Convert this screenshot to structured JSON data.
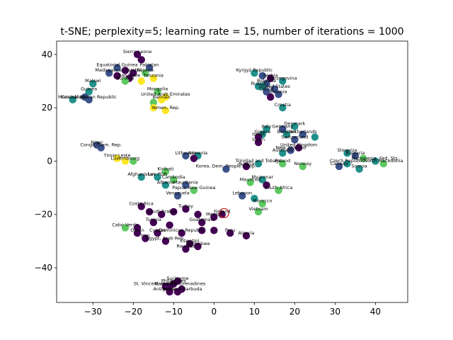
{
  "chart_data": {
    "type": "scatter",
    "title": "t-SNE; perplexity=5; learning rate = 15, number of iterations = 1000",
    "xlabel": "",
    "ylabel": "",
    "xlim": [
      -39,
      48
    ],
    "ylim": [
      -53,
      45
    ],
    "xticks": [
      -30,
      -20,
      -10,
      0,
      10,
      20,
      30,
      40
    ],
    "yticks": [
      -40,
      -20,
      0,
      20,
      40
    ],
    "xtick_labels": [
      "−30",
      "−20",
      "−10",
      "0",
      "10",
      "20",
      "30",
      "40"
    ],
    "ytick_labels": [
      "−40",
      "−20",
      "0",
      "20",
      "40"
    ],
    "grid": false,
    "legend": "none",
    "colormap": [
      "#440154",
      "#3b528b",
      "#21918c",
      "#5ec962",
      "#fde725"
    ],
    "highlight": {
      "x": 2.5,
      "y": -19.5,
      "color": "#d62728"
    },
    "points": [
      {
        "x": -19,
        "y": 40,
        "c": 0,
        "label": "Sierra Leone"
      },
      {
        "x": -18,
        "y": 38,
        "c": 0,
        "label": ""
      },
      {
        "x": -16,
        "y": 35,
        "c": 1,
        "label": "Pakistan"
      },
      {
        "x": -24,
        "y": 35,
        "c": 1,
        "label": "Equatorial Guinea"
      },
      {
        "x": -22,
        "y": 34,
        "c": 0,
        "label": ""
      },
      {
        "x": -20,
        "y": 33,
        "c": 0,
        "label": "Zambia"
      },
      {
        "x": -26,
        "y": 33,
        "c": 1,
        "label": "Madagascar"
      },
      {
        "x": -24,
        "y": 32,
        "c": 0,
        "label": ""
      },
      {
        "x": -17,
        "y": 33,
        "c": 3,
        "label": "Nigeria"
      },
      {
        "x": -21,
        "y": 31,
        "c": 0,
        "label": "Sao Tome"
      },
      {
        "x": -15,
        "y": 31,
        "c": 4,
        "label": "Tanzania"
      },
      {
        "x": -22,
        "y": 30,
        "c": 3,
        "label": "Burundi"
      },
      {
        "x": -18,
        "y": 30,
        "c": 4,
        "label": ""
      },
      {
        "x": -30,
        "y": 29,
        "c": 2,
        "label": "Malawi"
      },
      {
        "x": -31,
        "y": 26,
        "c": 2,
        "label": "Guinea"
      },
      {
        "x": -32,
        "y": 24,
        "c": 1,
        "label": ""
      },
      {
        "x": -35,
        "y": 23,
        "c": 2,
        "label": "Mozambique"
      },
      {
        "x": -31,
        "y": 23,
        "c": 1,
        "label": "Central African Republic"
      },
      {
        "x": -14,
        "y": 26,
        "c": 3,
        "label": "Mongolia"
      },
      {
        "x": -12,
        "y": 24,
        "c": 4,
        "label": "United Arab Emirates"
      },
      {
        "x": -13,
        "y": 23,
        "c": 4,
        "label": "Bahrain"
      },
      {
        "x": -15,
        "y": 22,
        "c": 3,
        "label": ""
      },
      {
        "x": -12,
        "y": 19,
        "c": 4,
        "label": "Yemen, Rep."
      },
      {
        "x": -15,
        "y": 20,
        "c": 4,
        "label": ""
      },
      {
        "x": 10,
        "y": 33,
        "c": 2,
        "label": "Kyrgyz Republic"
      },
      {
        "x": 12,
        "y": 32,
        "c": 1,
        "label": ""
      },
      {
        "x": 14,
        "y": 31,
        "c": 0,
        "label": "Serbia"
      },
      {
        "x": 17,
        "y": 30,
        "c": 2,
        "label": "Herzegovina"
      },
      {
        "x": 13,
        "y": 29,
        "c": 1,
        "label": "Bulgaria"
      },
      {
        "x": 12,
        "y": 28,
        "c": 2,
        "label": ""
      },
      {
        "x": 15,
        "y": 27,
        "c": 1,
        "label": "United States"
      },
      {
        "x": 11,
        "y": 28,
        "c": 2,
        "label": "Russia"
      },
      {
        "x": 13,
        "y": 26,
        "c": 1,
        "label": "Latvia"
      },
      {
        "x": 16,
        "y": 25,
        "c": 1,
        "label": "Estonia"
      },
      {
        "x": 14,
        "y": 24,
        "c": 0,
        "label": ""
      },
      {
        "x": 17,
        "y": 20,
        "c": 2,
        "label": "Croatia"
      },
      {
        "x": 20,
        "y": 13,
        "c": 2,
        "label": "Denmark"
      },
      {
        "x": 17,
        "y": 12,
        "c": 1,
        "label": "Germany"
      },
      {
        "x": 13,
        "y": 12,
        "c": 2,
        "label": "Italy"
      },
      {
        "x": 12,
        "y": 10,
        "c": 2,
        "label": "Greece"
      },
      {
        "x": 22,
        "y": 10,
        "c": 1,
        "label": "Netherlands"
      },
      {
        "x": 18,
        "y": 10,
        "c": 2,
        "label": "Belgium"
      },
      {
        "x": 11,
        "y": 9,
        "c": 0,
        "label": "Israel"
      },
      {
        "x": 25,
        "y": 9,
        "c": 2,
        "label": ""
      },
      {
        "x": 20,
        "y": 8,
        "c": 1,
        "label": "Switzerland"
      },
      {
        "x": 11,
        "y": 7,
        "c": 0,
        "label": "Spain"
      },
      {
        "x": 21,
        "y": 5,
        "c": 0,
        "label": "United Kingdom"
      },
      {
        "x": 19,
        "y": 4,
        "c": 1,
        "label": "New Zealand"
      },
      {
        "x": 17,
        "y": 3,
        "c": 2,
        "label": "Australia"
      },
      {
        "x": -29,
        "y": 6,
        "c": 1,
        "label": "Niger"
      },
      {
        "x": -28,
        "y": 5,
        "c": 1,
        "label": "Congo, Dem. Rep."
      },
      {
        "x": -24,
        "y": 1,
        "c": 4,
        "label": "Timor-Leste"
      },
      {
        "x": -22,
        "y": 0,
        "c": 4,
        "label": "Luxembourg"
      },
      {
        "x": -20,
        "y": 0,
        "c": 3,
        "label": ""
      },
      {
        "x": -4,
        "y": 2,
        "c": 2,
        "label": "Armenia"
      },
      {
        "x": -7,
        "y": 2,
        "c": 1,
        "label": "Lithuania"
      },
      {
        "x": -5,
        "y": 1,
        "c": 0,
        "label": ""
      },
      {
        "x": 11,
        "y": -1,
        "c": 2,
        "label": "Trinidad and Tobago"
      },
      {
        "x": 17,
        "y": -1,
        "c": 3,
        "label": "Poland"
      },
      {
        "x": 22,
        "y": -2,
        "c": 3,
        "label": "Norway"
      },
      {
        "x": 8,
        "y": -2,
        "c": 0,
        "label": "Austria"
      },
      {
        "x": 3,
        "y": -3,
        "c": 1,
        "label": "Korea, Dem. People's Rep."
      },
      {
        "x": -12,
        "y": -4,
        "c": 3,
        "label": "Kiribati"
      },
      {
        "x": -18,
        "y": -6,
        "c": 2,
        "label": "Afghanistan"
      },
      {
        "x": -14,
        "y": -6,
        "c": 2,
        "label": "Lao PDR"
      },
      {
        "x": -10,
        "y": -7,
        "c": 3,
        "label": "Cambodia"
      },
      {
        "x": -12,
        "y": -9,
        "c": 2,
        "label": "Albania"
      },
      {
        "x": -7,
        "y": -9,
        "c": 1,
        "label": "Mauritania"
      },
      {
        "x": -5,
        "y": -11,
        "c": 3,
        "label": "Papua New Guinea"
      },
      {
        "x": -9,
        "y": -13,
        "c": 1,
        "label": "Venezuela"
      },
      {
        "x": 9,
        "y": -8,
        "c": 3,
        "label": "Mauritius"
      },
      {
        "x": 12,
        "y": -7,
        "c": 2,
        "label": "Myanmar"
      },
      {
        "x": 13,
        "y": -9,
        "c": 0,
        "label": ""
      },
      {
        "x": 16,
        "y": -11,
        "c": 3,
        "label": "South Africa"
      },
      {
        "x": 7,
        "y": -13,
        "c": 1,
        "label": "Lebanon"
      },
      {
        "x": 10,
        "y": -14,
        "c": 2,
        "label": ""
      },
      {
        "x": 12,
        "y": -16,
        "c": 3,
        "label": "Morocco"
      },
      {
        "x": 11,
        "y": -19,
        "c": 3,
        "label": "Vietnam"
      },
      {
        "x": 33,
        "y": 3,
        "c": 2,
        "label": "Slovenia"
      },
      {
        "x": 35,
        "y": 2,
        "c": 1,
        "label": "Bulgaria"
      },
      {
        "x": 37,
        "y": 1,
        "c": 3,
        "label": ""
      },
      {
        "x": 40,
        "y": 0,
        "c": 2,
        "label": "Micronesia, Fed. Sts."
      },
      {
        "x": 42,
        "y": -1,
        "c": 3,
        "label": "North Macedonia"
      },
      {
        "x": 33,
        "y": -1,
        "c": 2,
        "label": "Czech Republic"
      },
      {
        "x": 31,
        "y": -2,
        "c": 1,
        "label": "Canada"
      },
      {
        "x": 36,
        "y": -3,
        "c": 2,
        "label": "Samoa"
      },
      {
        "x": -18,
        "y": -17,
        "c": 0,
        "label": "Costa Rica"
      },
      {
        "x": -16,
        "y": -19,
        "c": 0,
        "label": ""
      },
      {
        "x": -13,
        "y": -20,
        "c": 0,
        "label": "Saudi Arabia"
      },
      {
        "x": -10,
        "y": -19,
        "c": 0,
        "label": ""
      },
      {
        "x": -7,
        "y": -18,
        "c": 0,
        "label": "Turkey"
      },
      {
        "x": -4,
        "y": -20,
        "c": 0,
        "label": ""
      },
      {
        "x": 0,
        "y": -21,
        "c": 0,
        "label": "Mexico"
      },
      {
        "x": 2,
        "y": -20,
        "c": 0,
        "label": "Finland"
      },
      {
        "x": -3,
        "y": -23,
        "c": 0,
        "label": "Guatemala"
      },
      {
        "x": -15,
        "y": -23,
        "c": 0,
        "label": "Tunisia"
      },
      {
        "x": -11,
        "y": -24,
        "c": 0,
        "label": ""
      },
      {
        "x": -19,
        "y": -25,
        "c": 0,
        "label": ""
      },
      {
        "x": -22,
        "y": -25,
        "c": 3,
        "label": "Cabo Verde"
      },
      {
        "x": -19,
        "y": -27,
        "c": 0,
        "label": "Oman"
      },
      {
        "x": -14,
        "y": -27,
        "c": 0,
        "label": "Cyprus"
      },
      {
        "x": -8,
        "y": -27,
        "c": 0,
        "label": "Dominican Republic"
      },
      {
        "x": -3,
        "y": -26,
        "c": 0,
        "label": ""
      },
      {
        "x": 0,
        "y": -26,
        "c": 0,
        "label": ""
      },
      {
        "x": 4,
        "y": -27,
        "c": 0,
        "label": "Peru"
      },
      {
        "x": 8,
        "y": -28,
        "c": 0,
        "label": "Algeria"
      },
      {
        "x": -12,
        "y": -30,
        "c": 0,
        "label": "Egypt, Arab Rep."
      },
      {
        "x": -17,
        "y": -29,
        "c": 0,
        "label": "Iran"
      },
      {
        "x": -6,
        "y": -31,
        "c": 0,
        "label": "Eswatini"
      },
      {
        "x": -4,
        "y": -32,
        "c": 0,
        "label": "Zimbabwe"
      },
      {
        "x": -7,
        "y": -33,
        "c": 0,
        "label": "Rwanda"
      },
      {
        "x": -9,
        "y": -45,
        "c": 0,
        "label": "Suriname"
      },
      {
        "x": -10,
        "y": -46,
        "c": 0,
        "label": "Philippines"
      },
      {
        "x": -11,
        "y": -47,
        "c": 0,
        "label": "St. Vincent and the Grenadines"
      },
      {
        "x": -12,
        "y": -47,
        "c": 0,
        "label": "Barbados"
      },
      {
        "x": -8,
        "y": -48,
        "c": 0,
        "label": ""
      },
      {
        "x": -9,
        "y": -49,
        "c": 0,
        "label": "Antigua and Barbuda"
      },
      {
        "x": -11,
        "y": -49,
        "c": 0,
        "label": "Aruba"
      }
    ]
  }
}
